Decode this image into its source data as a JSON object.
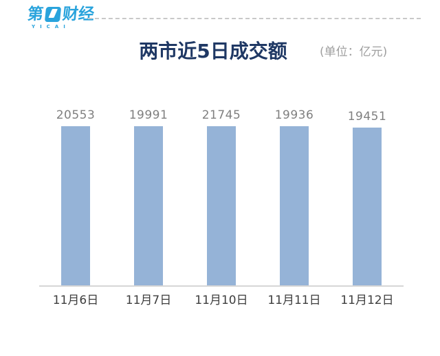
{
  "brand": {
    "logo_text_part1": "第",
    "logo_text_part2": "财经",
    "logo_subtext": "YICAI",
    "logo_color": "#29a3dc"
  },
  "header": {
    "title": "两市近5日成交额",
    "unit_label": "(单位：亿元)",
    "title_color": "#1f3864",
    "unit_color": "#9e9e9e"
  },
  "chart_data": {
    "type": "bar",
    "title": "两市近5日成交额",
    "unit": "亿元",
    "categories": [
      "11月6日",
      "11月7日",
      "11月10日",
      "11月11日",
      "11月12日"
    ],
    "values": [
      20553,
      19991,
      21745,
      19936,
      19451
    ],
    "ylim": [
      0,
      21745
    ],
    "grid": false,
    "legend": false,
    "bar_color": "#95b3d7",
    "value_label_color": "#7f7f7f",
    "axis_line_color": "#d6d6d6"
  }
}
